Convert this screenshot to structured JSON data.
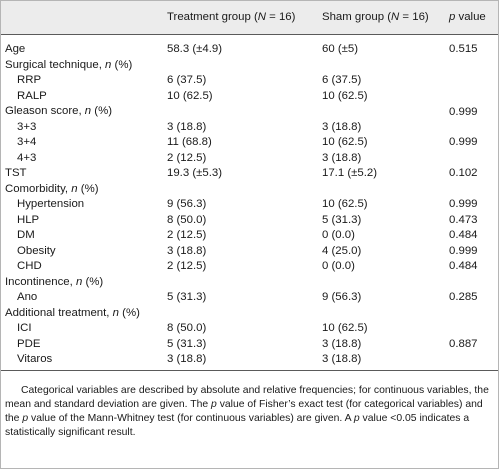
{
  "header": {
    "col_variable": "",
    "col_treatment": "Treatment group (N = 16)",
    "col_sham": "Sham group (N = 16)",
    "col_p": "p value"
  },
  "rows": [
    {
      "label": "Age",
      "indent": false,
      "treatment": "58.3 (±4.9)",
      "sham": "60 (±5)",
      "p": "0.515"
    },
    {
      "label": "Surgical technique, n (%)",
      "indent": false,
      "treatment": "",
      "sham": "",
      "p": ""
    },
    {
      "label": "RRP",
      "indent": true,
      "treatment": "6 (37.5)",
      "sham": "6 (37.5)",
      "p": ""
    },
    {
      "label": "RALP",
      "indent": true,
      "treatment": "10 (62.5)",
      "sham": "10 (62.5)",
      "p": ""
    },
    {
      "label": "Gleason score, n (%)",
      "indent": false,
      "treatment": "",
      "sham": "",
      "p": ""
    },
    {
      "label": "3+3",
      "indent": true,
      "treatment": "3 (18.8)",
      "sham": "3 (18.8)",
      "p": ""
    },
    {
      "label": "3+4",
      "indent": true,
      "treatment": "11 (68.8)",
      "sham": "10 (62.5)",
      "p": "0.999"
    },
    {
      "label": "4+3",
      "indent": true,
      "treatment": "2 (12.5)",
      "sham": "3 (18.8)",
      "p": ""
    },
    {
      "label": "TST",
      "indent": false,
      "treatment": "19.3 (±5.3)",
      "sham": "17.1 (±5.2)",
      "p": "0.102"
    },
    {
      "label": "Comorbidity, n (%)",
      "indent": false,
      "treatment": "",
      "sham": "",
      "p": ""
    },
    {
      "label": "Hypertension",
      "indent": true,
      "treatment": "9 (56.3)",
      "sham": "10 (62.5)",
      "p": "0.999"
    },
    {
      "label": "HLP",
      "indent": true,
      "treatment": "8 (50.0)",
      "sham": "5 (31.3)",
      "p": "0.473"
    },
    {
      "label": "DM",
      "indent": true,
      "treatment": "2 (12.5)",
      "sham": "0 (0.0)",
      "p": "0.484"
    },
    {
      "label": "Obesity",
      "indent": true,
      "treatment": "3 (18.8)",
      "sham": "4 (25.0)",
      "p": "0.999"
    },
    {
      "label": "CHD",
      "indent": true,
      "treatment": "2 (12.5)",
      "sham": "0 (0.0)",
      "p": "0.484"
    },
    {
      "label": "Incontinence, n (%)",
      "indent": false,
      "treatment": "",
      "sham": "",
      "p": ""
    },
    {
      "label": "Ano",
      "indent": true,
      "treatment": "5 (31.3)",
      "sham": "9 (56.3)",
      "p": "0.285"
    },
    {
      "label": "Additional treatment, n (%)",
      "indent": false,
      "treatment": "",
      "sham": "",
      "p": ""
    },
    {
      "label": "ICI",
      "indent": true,
      "treatment": "8 (50.0)",
      "sham": "10 (62.5)",
      "p": ""
    },
    {
      "label": "PDE",
      "indent": true,
      "treatment": "5 (31.3)",
      "sham": "3 (18.8)",
      "p": "0.887"
    },
    {
      "label": "Vitaros",
      "indent": true,
      "treatment": "3 (18.8)",
      "sham": "3 (18.8)",
      "p": ""
    }
  ],
  "merged_p": {
    "surgical": "0.999"
  },
  "footnote": "Categorical variables are described by absolute and relative frequencies; for continuous variables, the mean and standard deviation are given. The p value of Fisher's exact test (for categorical variables) and the p value of the Mann-Whitney test (for continuous variables) are given. A p value <0.05 indicates a statistically significant result."
}
